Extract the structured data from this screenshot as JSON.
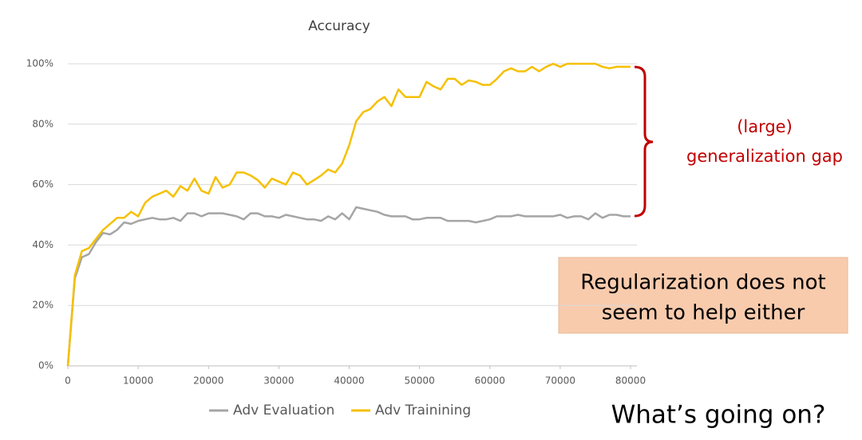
{
  "chart_data": {
    "type": "line",
    "title": "Accuracy",
    "x": [
      0,
      1000,
      2000,
      3000,
      4000,
      5000,
      6000,
      7000,
      8000,
      9000,
      10000,
      11000,
      12000,
      13000,
      14000,
      15000,
      16000,
      17000,
      18000,
      19000,
      20000,
      21000,
      22000,
      23000,
      24000,
      25000,
      26000,
      27000,
      28000,
      29000,
      30000,
      31000,
      32000,
      33000,
      34000,
      35000,
      36000,
      37000,
      38000,
      39000,
      40000,
      41000,
      42000,
      43000,
      44000,
      45000,
      46000,
      47000,
      48000,
      49000,
      50000,
      51000,
      52000,
      53000,
      54000,
      55000,
      56000,
      57000,
      58000,
      59000,
      60000,
      61000,
      62000,
      63000,
      64000,
      65000,
      66000,
      67000,
      68000,
      69000,
      70000,
      71000,
      72000,
      73000,
      74000,
      75000,
      76000,
      77000,
      78000,
      79000,
      80000
    ],
    "series": [
      {
        "name": "Adv Evaluation",
        "color": "#a5a5a5",
        "values": [
          0,
          29,
          36,
          37,
          41,
          44,
          43.5,
          45,
          47.5,
          47,
          48,
          48.5,
          49,
          48.5,
          48.5,
          49,
          48,
          50.5,
          50.5,
          49.5,
          50.5,
          50.5,
          50.5,
          50,
          49.5,
          48.5,
          50.5,
          50.5,
          49.5,
          49.5,
          49,
          50,
          49.5,
          49,
          48.5,
          48.5,
          48,
          49.5,
          48.5,
          50.5,
          48.5,
          52.5,
          52,
          51.5,
          51,
          50,
          49.5,
          49.5,
          49.5,
          48.5,
          48.5,
          49,
          49,
          49,
          48,
          48,
          48,
          48,
          47.5,
          48,
          48.5,
          49.5,
          49.5,
          49.5,
          50,
          49.5,
          49.5,
          49.5,
          49.5,
          49.5,
          50,
          49,
          49.5,
          49.5,
          48.5,
          50.5,
          49,
          50,
          50,
          49.5,
          49.5
        ]
      },
      {
        "name": "Adv Trainining",
        "color": "#f5c000",
        "values": [
          0,
          30,
          38,
          39,
          42,
          45,
          47,
          49,
          49,
          51,
          49.5,
          54,
          56,
          57,
          58,
          56,
          59.5,
          58,
          62,
          58,
          57,
          62.5,
          59,
          60,
          64,
          64,
          63,
          61.5,
          59,
          62,
          61,
          60,
          64,
          63,
          60,
          61.5,
          63,
          65,
          64,
          67,
          73,
          81,
          84,
          85,
          87.5,
          89,
          86,
          91.5,
          89,
          89,
          89,
          94,
          92.5,
          91.5,
          95,
          95,
          93,
          94.5,
          94,
          93,
          93,
          95,
          97.5,
          98.5,
          97.5,
          97.5,
          99,
          97.5,
          99,
          100,
          99,
          100,
          100,
          100,
          100,
          100,
          99,
          98.5,
          99,
          99,
          99
        ]
      }
    ],
    "xlim": [
      0,
      80000
    ],
    "xticks": [
      0,
      10000,
      20000,
      30000,
      40000,
      50000,
      60000,
      70000,
      80000
    ],
    "ylim": [
      0,
      100
    ],
    "yticks": [
      {
        "value": 0,
        "label": "0%"
      },
      {
        "value": 20,
        "label": "20%"
      },
      {
        "value": 40,
        "label": "40%"
      },
      {
        "value": 60,
        "label": "60%"
      },
      {
        "value": 80,
        "label": "80%"
      },
      {
        "value": 100,
        "label": "100%"
      }
    ],
    "grid": true,
    "annotations": {
      "gap": [
        "(large)",
        "generalization gap"
      ],
      "note": [
        "Regularization does not",
        "seem to help either"
      ],
      "question": "What’s going on?"
    }
  }
}
